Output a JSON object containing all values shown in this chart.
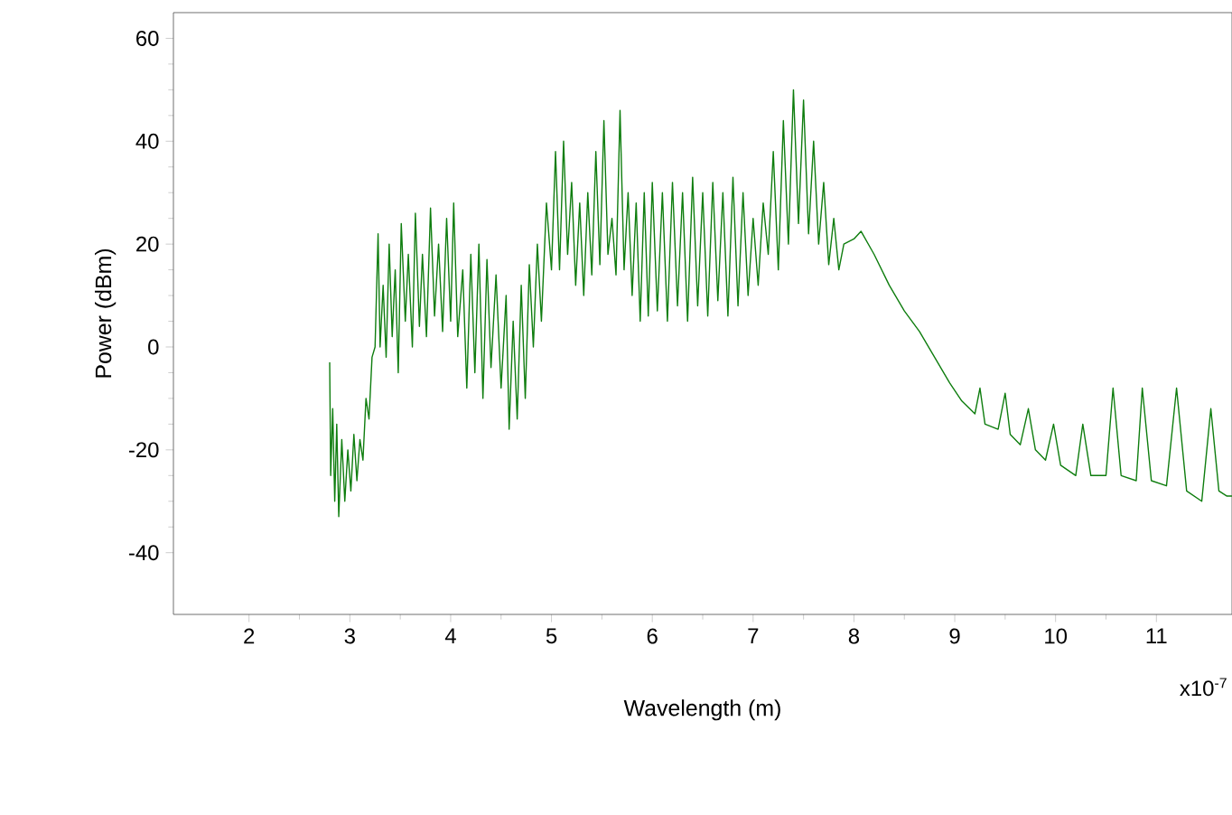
{
  "chart_data": {
    "type": "line",
    "xlabel": "Wavelength (m)",
    "ylabel": "Power (dBm)",
    "annotations": [
      "x10$^{-7}$"
    ],
    "xlim": [
      1.25,
      11.75
    ],
    "ylim": [
      -52,
      65
    ],
    "xticks": [
      2,
      3,
      4,
      5,
      6,
      7,
      8,
      9,
      10,
      11
    ],
    "yticks": [
      -40,
      -20,
      0,
      20,
      40,
      60
    ],
    "grid": false,
    "marker": "none",
    "line_style": "solid",
    "series": [
      {
        "color": "#0e7d0e",
        "x": [
          2.8,
          2.81,
          2.83,
          2.85,
          2.87,
          2.89,
          2.92,
          2.95,
          2.98,
          3.01,
          3.04,
          3.07,
          3.1,
          3.13,
          3.16,
          3.19,
          3.22,
          3.25,
          3.28,
          3.3,
          3.33,
          3.36,
          3.39,
          3.42,
          3.45,
          3.48,
          3.51,
          3.55,
          3.58,
          3.62,
          3.65,
          3.69,
          3.72,
          3.76,
          3.8,
          3.84,
          3.88,
          3.92,
          3.96,
          4.0,
          4.03,
          4.07,
          4.12,
          4.16,
          4.2,
          4.24,
          4.28,
          4.32,
          4.36,
          4.4,
          4.45,
          4.5,
          4.55,
          4.58,
          4.62,
          4.66,
          4.7,
          4.74,
          4.78,
          4.82,
          4.86,
          4.9,
          4.95,
          5.0,
          5.04,
          5.08,
          5.12,
          5.16,
          5.2,
          5.24,
          5.28,
          5.32,
          5.36,
          5.4,
          5.44,
          5.48,
          5.52,
          5.56,
          5.6,
          5.64,
          5.68,
          5.72,
          5.76,
          5.8,
          5.84,
          5.88,
          5.92,
          5.96,
          6.0,
          6.05,
          6.1,
          6.15,
          6.2,
          6.25,
          6.3,
          6.35,
          6.4,
          6.45,
          6.5,
          6.55,
          6.6,
          6.65,
          6.7,
          6.75,
          6.8,
          6.85,
          6.9,
          6.95,
          7.0,
          7.05,
          7.1,
          7.15,
          7.2,
          7.25,
          7.3,
          7.35,
          7.4,
          7.45,
          7.5,
          7.55,
          7.6,
          7.65,
          7.7,
          7.75,
          7.8,
          7.85,
          7.9,
          8.0,
          8.07,
          8.2,
          8.35,
          8.5,
          8.65,
          8.8,
          8.95,
          9.07,
          9.2,
          9.25,
          9.3,
          9.43,
          9.5,
          9.55,
          9.65,
          9.73,
          9.8,
          9.9,
          9.98,
          10.05,
          10.2,
          10.27,
          10.35,
          10.5,
          10.57,
          10.65,
          10.8,
          10.86,
          10.95,
          11.1,
          11.2,
          11.3,
          11.45,
          11.54,
          11.62,
          11.7,
          11.75
        ],
        "values": [
          -3,
          -25,
          -12,
          -30,
          -15,
          -33,
          -18,
          -30,
          -20,
          -28,
          -17,
          -26,
          -18,
          -22,
          -10,
          -14,
          -2,
          0,
          22,
          0,
          12,
          -2,
          20,
          2,
          15,
          -5,
          24,
          5,
          18,
          0,
          26,
          4,
          18,
          2,
          27,
          6,
          20,
          3,
          25,
          5,
          28,
          2,
          15,
          -8,
          18,
          -5,
          20,
          -10,
          17,
          -4,
          14,
          -8,
          10,
          -16,
          5,
          -14,
          12,
          -10,
          16,
          0,
          20,
          5,
          28,
          15,
          38,
          15,
          40,
          18,
          32,
          12,
          28,
          10,
          30,
          14,
          38,
          16,
          44,
          18,
          25,
          14,
          46,
          15,
          30,
          10,
          28,
          5,
          30,
          6,
          32,
          7,
          30,
          5,
          32,
          8,
          30,
          5,
          33,
          8,
          30,
          6,
          32,
          9,
          30,
          6,
          33,
          8,
          30,
          10,
          25,
          12,
          28,
          18,
          38,
          15,
          44,
          20,
          50,
          24,
          48,
          22,
          40,
          20,
          32,
          16,
          25,
          15,
          20,
          21,
          22.5,
          18,
          12,
          7,
          3,
          -2,
          -7,
          -10.5,
          -13,
          -8,
          -15,
          -16,
          -9,
          -17,
          -19,
          -12,
          -20,
          -22,
          -15,
          -23,
          -25,
          -15,
          -25,
          -25,
          -8,
          -25,
          -26,
          -8,
          -26,
          -27,
          -8,
          -28,
          -30,
          -12,
          -28,
          -29,
          -29
        ]
      }
    ]
  }
}
